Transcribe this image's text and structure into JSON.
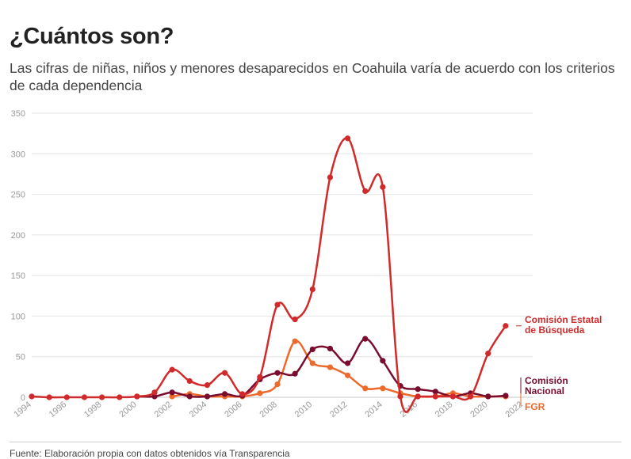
{
  "header": {
    "title": "¿Cuántos son?",
    "subtitle": "Las cifras de niñas, niños y menores desaparecidos en Coahuila varía de acuerdo con los criterios de cada dependencia"
  },
  "footer": {
    "source": "Fuente: Elaboración propia con datos obtenidos vía Transparencia"
  },
  "chart_data": {
    "type": "line",
    "title": "",
    "xlabel": "",
    "ylabel": "",
    "xlim": [
      1994,
      2022
    ],
    "ylim": [
      0,
      350
    ],
    "yticks": [
      0,
      50,
      100,
      150,
      200,
      250,
      300,
      350
    ],
    "xticks": [
      1994,
      1996,
      1998,
      2000,
      2002,
      2004,
      2006,
      2008,
      2010,
      2012,
      2014,
      2016,
      2018,
      2020,
      2022
    ],
    "grid": true,
    "legend": "direct-labels-right",
    "x": [
      1994,
      1995,
      1996,
      1997,
      1998,
      1999,
      2000,
      2001,
      2002,
      2003,
      2004,
      2005,
      2006,
      2007,
      2008,
      2009,
      2010,
      2011,
      2012,
      2013,
      2014,
      2015,
      2016,
      2017,
      2018,
      2019,
      2020,
      2021
    ],
    "series": [
      {
        "name": "Comisión Estatal de Búsqueda",
        "label_lines": [
          "Comisión Estatal",
          "de Búsqueda"
        ],
        "color": "#d12a2a",
        "values": [
          1,
          0,
          0,
          0,
          0,
          0,
          1,
          6,
          34,
          20,
          15,
          30,
          4,
          25,
          114,
          96,
          133,
          271,
          319,
          254,
          259,
          1,
          1,
          1,
          1,
          1,
          54,
          88
        ]
      },
      {
        "name": "Comisión Nacional",
        "label_lines": [
          "Comisión",
          "Nacional"
        ],
        "color": "#7a0c2e",
        "values": [
          null,
          null,
          null,
          null,
          null,
          null,
          1,
          1,
          6,
          1,
          1,
          4,
          2,
          22,
          30,
          29,
          59,
          60,
          42,
          72,
          45,
          14,
          10,
          7,
          1,
          5,
          1,
          2
        ]
      },
      {
        "name": "FGR",
        "label_lines": [
          "FGR"
        ],
        "color": "#ee6a2c",
        "values": [
          null,
          null,
          null,
          null,
          null,
          null,
          null,
          null,
          1,
          4,
          1,
          1,
          1,
          5,
          16,
          69,
          42,
          37,
          27,
          11,
          11,
          5,
          1,
          1,
          5,
          1,
          1,
          1
        ]
      }
    ]
  }
}
